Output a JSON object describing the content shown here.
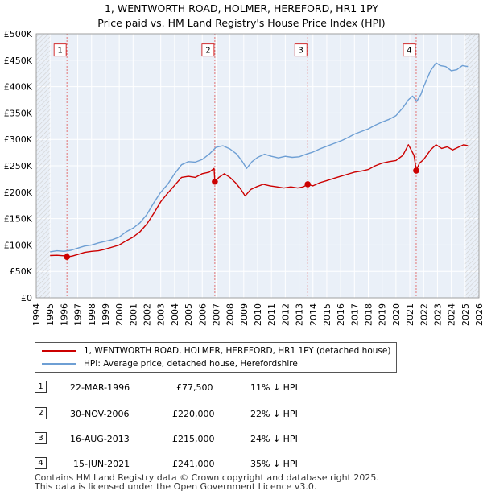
{
  "chart_data": {
    "type": "line",
    "title": "1, WENTWORTH ROAD, HOLMER, HEREFORD, HR1 1PY",
    "subtitle": "Price paid vs. HM Land Registry's House Price Index (HPI)",
    "xlim": [
      1994,
      2026
    ],
    "ylim": [
      0,
      500000
    ],
    "x_ticks": [
      1994,
      1995,
      1996,
      1997,
      1998,
      1999,
      2000,
      2001,
      2002,
      2003,
      2004,
      2005,
      2006,
      2007,
      2008,
      2009,
      2010,
      2011,
      2012,
      2013,
      2014,
      2015,
      2016,
      2017,
      2018,
      2019,
      2020,
      2021,
      2022,
      2023,
      2024,
      2025,
      2026
    ],
    "y_ticks": [
      {
        "value": 0,
        "label": "£0"
      },
      {
        "value": 50000,
        "label": "£50K"
      },
      {
        "value": 100000,
        "label": "£100K"
      },
      {
        "value": 150000,
        "label": "£150K"
      },
      {
        "value": 200000,
        "label": "£200K"
      },
      {
        "value": 250000,
        "label": "£250K"
      },
      {
        "value": 300000,
        "label": "£300K"
      },
      {
        "value": 350000,
        "label": "£350K"
      },
      {
        "value": 400000,
        "label": "£400K"
      },
      {
        "value": 450000,
        "label": "£450K"
      },
      {
        "value": 500000,
        "label": "£500K"
      }
    ],
    "series": [
      {
        "name": "1, WENTWORTH ROAD, HOLMER, HEREFORD, HR1 1PY (detached house)",
        "color": "#cc0000",
        "points": [
          [
            1995.0,
            80000
          ],
          [
            1995.5,
            80500
          ],
          [
            1996.0,
            79500
          ],
          [
            1996.22,
            77500
          ],
          [
            1996.6,
            79000
          ],
          [
            1997.0,
            82000
          ],
          [
            1997.5,
            86000
          ],
          [
            1998.0,
            88000
          ],
          [
            1998.5,
            89000
          ],
          [
            1999.0,
            92000
          ],
          [
            1999.5,
            96000
          ],
          [
            2000.0,
            100000
          ],
          [
            2000.5,
            108000
          ],
          [
            2001.0,
            115000
          ],
          [
            2001.5,
            125000
          ],
          [
            2002.0,
            140000
          ],
          [
            2002.5,
            160000
          ],
          [
            2003.0,
            182000
          ],
          [
            2003.5,
            198000
          ],
          [
            2004.0,
            213000
          ],
          [
            2004.5,
            228000
          ],
          [
            2005.0,
            230000
          ],
          [
            2005.5,
            228000
          ],
          [
            2006.0,
            235000
          ],
          [
            2006.5,
            238000
          ],
          [
            2006.85,
            245000
          ],
          [
            2006.91,
            220000
          ],
          [
            2007.2,
            228000
          ],
          [
            2007.6,
            235000
          ],
          [
            2008.0,
            228000
          ],
          [
            2008.4,
            218000
          ],
          [
            2008.8,
            205000
          ],
          [
            2009.1,
            193000
          ],
          [
            2009.5,
            205000
          ],
          [
            2009.9,
            210000
          ],
          [
            2010.4,
            215000
          ],
          [
            2010.9,
            212000
          ],
          [
            2011.4,
            210000
          ],
          [
            2011.9,
            208000
          ],
          [
            2012.4,
            210000
          ],
          [
            2012.9,
            208000
          ],
          [
            2013.3,
            210000
          ],
          [
            2013.62,
            215000
          ],
          [
            2014.0,
            212000
          ],
          [
            2014.5,
            218000
          ],
          [
            2015.0,
            222000
          ],
          [
            2015.5,
            226000
          ],
          [
            2016.0,
            230000
          ],
          [
            2016.5,
            234000
          ],
          [
            2017.0,
            238000
          ],
          [
            2017.5,
            240000
          ],
          [
            2018.0,
            243000
          ],
          [
            2018.5,
            250000
          ],
          [
            2019.0,
            255000
          ],
          [
            2019.5,
            258000
          ],
          [
            2020.0,
            260000
          ],
          [
            2020.5,
            270000
          ],
          [
            2020.9,
            290000
          ],
          [
            2021.1,
            280000
          ],
          [
            2021.3,
            270000
          ],
          [
            2021.42,
            250000
          ],
          [
            2021.46,
            241000
          ],
          [
            2021.7,
            255000
          ],
          [
            2022.0,
            262000
          ],
          [
            2022.5,
            280000
          ],
          [
            2022.9,
            290000
          ],
          [
            2023.3,
            283000
          ],
          [
            2023.7,
            286000
          ],
          [
            2024.1,
            280000
          ],
          [
            2024.5,
            285000
          ],
          [
            2024.9,
            290000
          ],
          [
            2025.2,
            288000
          ]
        ]
      },
      {
        "name": "HPI: Average price, detached house, Herefordshire",
        "color": "#6e9fd4",
        "points": [
          [
            1995.0,
            87000
          ],
          [
            1995.5,
            89000
          ],
          [
            1996.0,
            88000
          ],
          [
            1996.5,
            90000
          ],
          [
            1997.0,
            94000
          ],
          [
            1997.5,
            98000
          ],
          [
            1998.0,
            100000
          ],
          [
            1998.5,
            104000
          ],
          [
            1999.0,
            107000
          ],
          [
            1999.5,
            110000
          ],
          [
            2000.0,
            115000
          ],
          [
            2000.5,
            125000
          ],
          [
            2001.0,
            132000
          ],
          [
            2001.5,
            142000
          ],
          [
            2002.0,
            158000
          ],
          [
            2002.5,
            180000
          ],
          [
            2003.0,
            200000
          ],
          [
            2003.5,
            215000
          ],
          [
            2004.0,
            235000
          ],
          [
            2004.5,
            252000
          ],
          [
            2005.0,
            258000
          ],
          [
            2005.5,
            257000
          ],
          [
            2006.0,
            262000
          ],
          [
            2006.5,
            272000
          ],
          [
            2007.0,
            285000
          ],
          [
            2007.5,
            288000
          ],
          [
            2008.0,
            282000
          ],
          [
            2008.5,
            272000
          ],
          [
            2008.9,
            258000
          ],
          [
            2009.2,
            245000
          ],
          [
            2009.6,
            258000
          ],
          [
            2010.0,
            266000
          ],
          [
            2010.5,
            272000
          ],
          [
            2011.0,
            268000
          ],
          [
            2011.5,
            265000
          ],
          [
            2012.0,
            268000
          ],
          [
            2012.5,
            266000
          ],
          [
            2013.0,
            267000
          ],
          [
            2013.5,
            272000
          ],
          [
            2014.0,
            276000
          ],
          [
            2014.5,
            282000
          ],
          [
            2015.0,
            287000
          ],
          [
            2015.5,
            292000
          ],
          [
            2016.0,
            297000
          ],
          [
            2016.5,
            303000
          ],
          [
            2017.0,
            310000
          ],
          [
            2017.5,
            315000
          ],
          [
            2018.0,
            320000
          ],
          [
            2018.5,
            327000
          ],
          [
            2019.0,
            333000
          ],
          [
            2019.5,
            338000
          ],
          [
            2020.0,
            345000
          ],
          [
            2020.5,
            360000
          ],
          [
            2020.9,
            375000
          ],
          [
            2021.2,
            382000
          ],
          [
            2021.5,
            372000
          ],
          [
            2021.8,
            385000
          ],
          [
            2022.0,
            400000
          ],
          [
            2022.5,
            430000
          ],
          [
            2022.9,
            445000
          ],
          [
            2023.2,
            440000
          ],
          [
            2023.6,
            438000
          ],
          [
            2024.0,
            430000
          ],
          [
            2024.4,
            432000
          ],
          [
            2024.8,
            440000
          ],
          [
            2025.2,
            438000
          ]
        ]
      }
    ],
    "sales": [
      {
        "n": "1",
        "x": 1996.22,
        "y": 77500
      },
      {
        "n": "2",
        "x": 2006.91,
        "y": 220000
      },
      {
        "n": "3",
        "x": 2013.62,
        "y": 215000
      },
      {
        "n": "4",
        "x": 2021.46,
        "y": 241000
      }
    ],
    "marker_label_value": 470000,
    "hatch_before": 1995.0,
    "hatch_after": 2025.0
  },
  "sales_table": [
    {
      "n": "1",
      "date": "22-MAR-1996",
      "price": "£77,500",
      "hpi": "11% ↓ HPI"
    },
    {
      "n": "2",
      "date": "30-NOV-2006",
      "price": "£220,000",
      "hpi": "22% ↓ HPI"
    },
    {
      "n": "3",
      "date": "16-AUG-2013",
      "price": "£215,000",
      "hpi": "24% ↓ HPI"
    },
    {
      "n": "4",
      "date": "15-JUN-2021",
      "price": "£241,000",
      "hpi": "35% ↓ HPI"
    }
  ],
  "footer": {
    "line1": "Contains HM Land Registry data © Crown copyright and database right 2025.",
    "line2": "This data is licensed under the Open Government Licence v3.0."
  }
}
